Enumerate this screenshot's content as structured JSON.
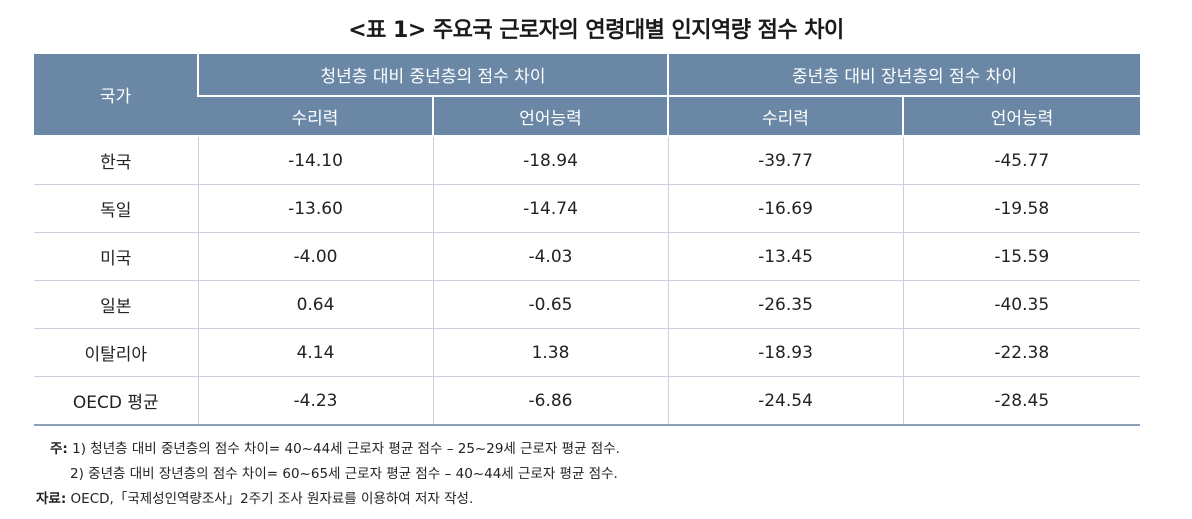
{
  "title": "<표 1> 주요국 근로자의 연령대별 인지역량 점수 차이",
  "table": {
    "country_header": "국가",
    "group_headers": [
      "청년층 대비 중년층의 점수 차이",
      "중년층 대비 장년층의 점수 차이"
    ],
    "sub_headers": [
      "수리력",
      "언어능력",
      "수리력",
      "언어능력"
    ],
    "rows": [
      {
        "country": "한국",
        "values": [
          "-14.10",
          "-18.94",
          "-39.77",
          "-45.77"
        ]
      },
      {
        "country": "독일",
        "values": [
          "-13.60",
          "-14.74",
          "-16.69",
          "-19.58"
        ]
      },
      {
        "country": "미국",
        "values": [
          "-4.00",
          "-4.03",
          "-13.45",
          "-15.59"
        ]
      },
      {
        "country": "일본",
        "values": [
          "0.64",
          "-0.65",
          "-26.35",
          "-40.35"
        ]
      },
      {
        "country": "이탈리아",
        "values": [
          "4.14",
          "1.38",
          "-18.93",
          "-22.38"
        ]
      },
      {
        "country": "OECD 평균",
        "values": [
          "-4.23",
          "-6.86",
          "-24.54",
          "-28.45"
        ]
      }
    ]
  },
  "notes": {
    "label": "주:",
    "note1": "1) 청년층 대비 중년층의 점수 차이= 40~44세 근로자 평균 점수 – 25~29세 근로자 평균 점수.",
    "note2": "2) 중년층 대비 장년층의 점수 차이= 60~65세 근로자 평균 점수 – 40~44세 근로자 평균 점수.",
    "source_label": "자료:",
    "source": "OECD,「국제성인역량조사」2주기 조사 원자료를 이용하여 저자 작성."
  }
}
